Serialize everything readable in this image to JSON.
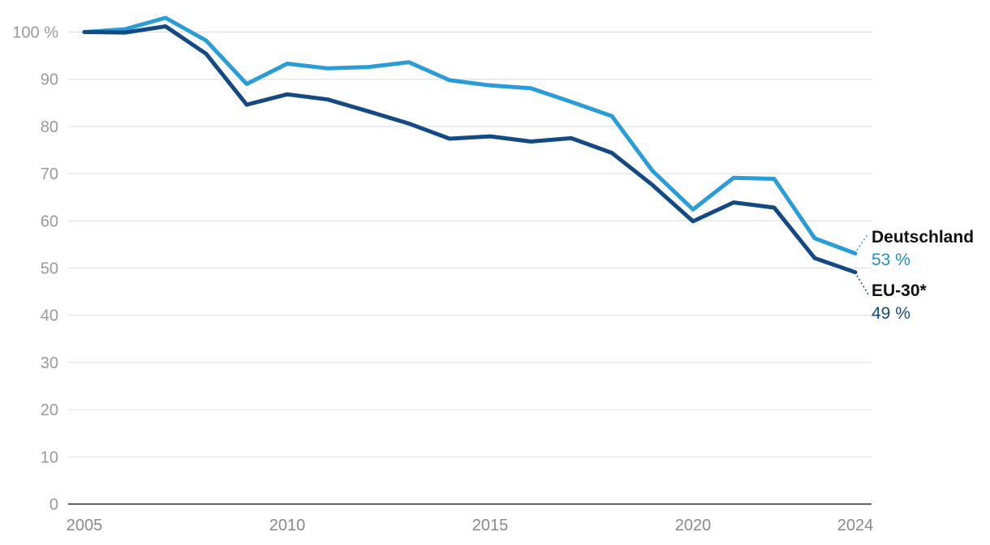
{
  "chart_data": {
    "type": "line",
    "title": "",
    "xlabel": "",
    "ylabel": "",
    "x": [
      2005,
      2006,
      2007,
      2008,
      2009,
      2010,
      2011,
      2012,
      2013,
      2014,
      2015,
      2016,
      2017,
      2018,
      2019,
      2020,
      2021,
      2022,
      2023,
      2024
    ],
    "xlim": [
      2005,
      2024
    ],
    "ylim": [
      0,
      100
    ],
    "x_ticks": [
      "2005",
      "2010",
      "2015",
      "2020",
      "2024"
    ],
    "y_ticks": [
      "0",
      "10",
      "20",
      "30",
      "40",
      "50",
      "60",
      "70",
      "80",
      "90",
      "100 %"
    ],
    "grid": true,
    "legend": "direct labels at line ends (right)",
    "series": [
      {
        "name": "Deutschland",
        "end_label": "53 %",
        "color": "#2a9cd8",
        "label_color": "#1e8fc4",
        "values": [
          100,
          100.6,
          103,
          98.2,
          89,
          93.3,
          92.3,
          92.6,
          93.6,
          89.8,
          88.7,
          88.1,
          85.2,
          82.2,
          70.6,
          62.4,
          69.1,
          68.9,
          56.3,
          53.1
        ]
      },
      {
        "name": "EU-30*",
        "end_label": "49 %",
        "color": "#134a84",
        "label_color": "#134a84",
        "values": [
          100,
          99.9,
          101.2,
          95.4,
          84.6,
          86.8,
          85.7,
          83.2,
          80.6,
          77.4,
          77.9,
          76.8,
          77.5,
          74.4,
          67.6,
          59.9,
          63.9,
          62.8,
          52.1,
          49.1
        ]
      }
    ]
  }
}
